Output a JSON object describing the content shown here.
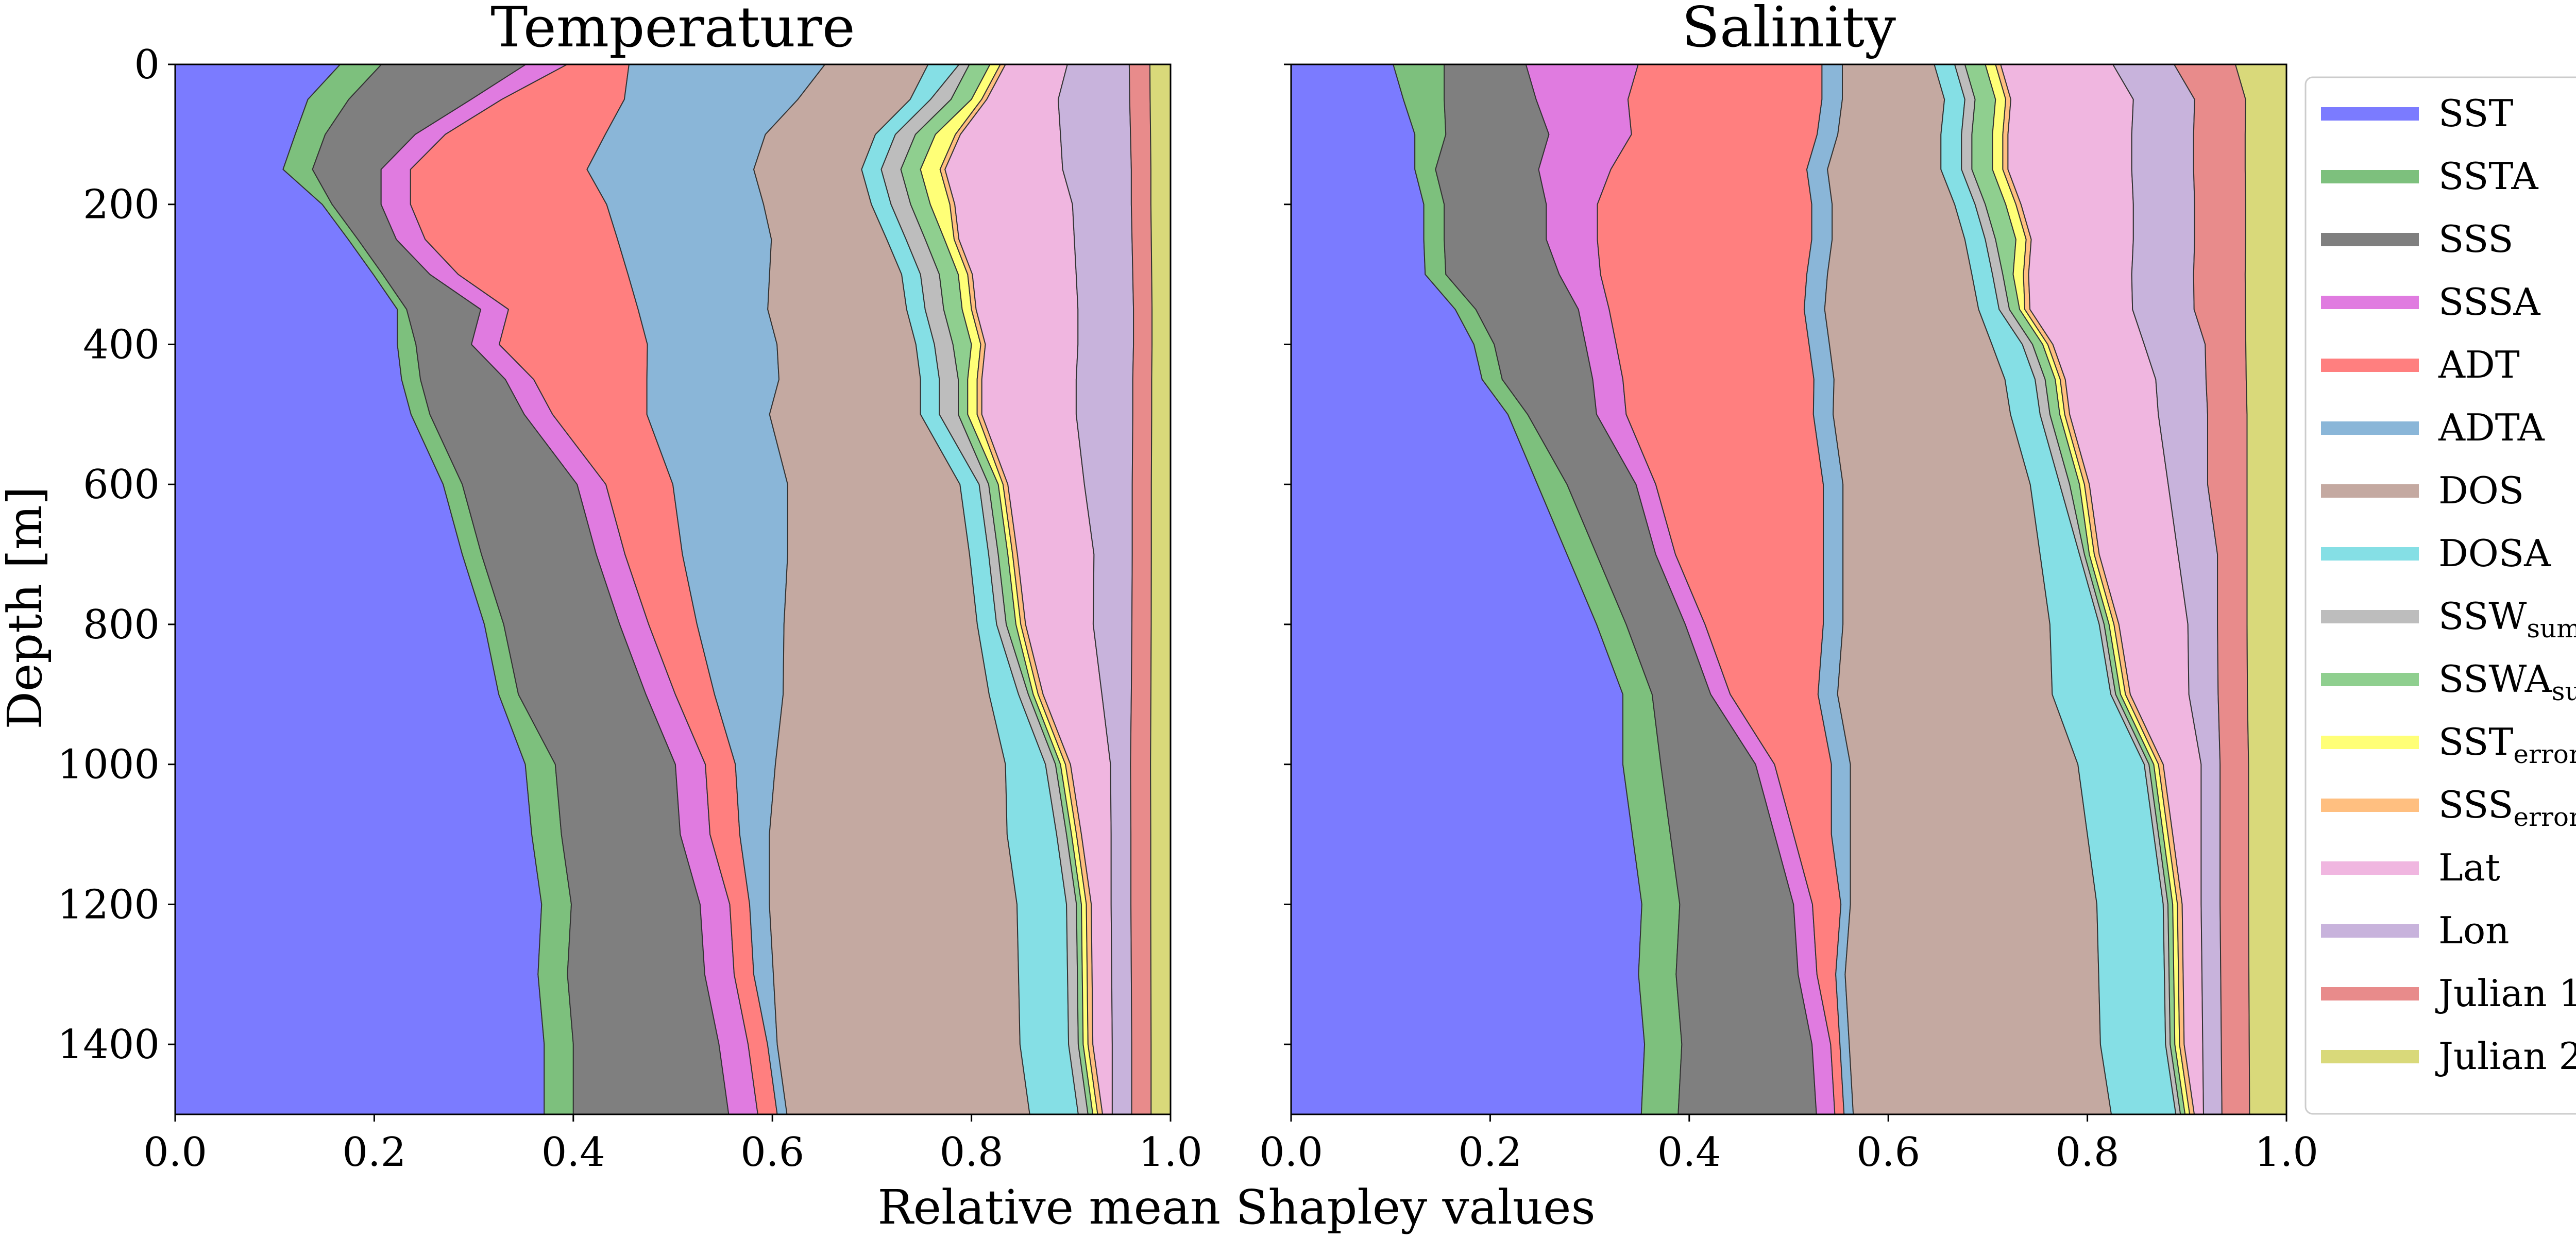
{
  "figure": {
    "xlabel": "Relative mean Shapley values",
    "ylabel": "Depth [m]"
  },
  "legend": [
    {
      "key": "SST",
      "label": "SST",
      "sub": "",
      "color": "#7b7bff"
    },
    {
      "key": "SSTA",
      "label": "SSTA",
      "sub": "",
      "color": "#7dc07d"
    },
    {
      "key": "SSS",
      "label": "SSS",
      "sub": "",
      "color": "#7f7f7f"
    },
    {
      "key": "SSSA",
      "label": "SSSA",
      "sub": "",
      "color": "#e07be0"
    },
    {
      "key": "ADT",
      "label": "ADT",
      "sub": "",
      "color": "#ff7f7f"
    },
    {
      "key": "ADTA",
      "label": "ADTA",
      "sub": "",
      "color": "#8ab6d8"
    },
    {
      "key": "DOS",
      "label": "DOS",
      "sub": "",
      "color": "#c4a9a1"
    },
    {
      "key": "DOSA",
      "label": "DOSA",
      "sub": "",
      "color": "#85dfe5"
    },
    {
      "key": "SSW_sum",
      "label": "SSW",
      "sub": "sum",
      "color": "#bdbdbd"
    },
    {
      "key": "SSWA_sum",
      "label": "SSWA",
      "sub": "sum",
      "color": "#8fcf8f"
    },
    {
      "key": "SST_error",
      "label": "SST",
      "sub": "error",
      "color": "#ffff77"
    },
    {
      "key": "SSS_error",
      "label": "SSS",
      "sub": "error",
      "color": "#ffbf80"
    },
    {
      "key": "Lat",
      "label": "Lat",
      "sub": "",
      "color": "#f0b6e0"
    },
    {
      "key": "Lon",
      "label": "Lon",
      "sub": "",
      "color": "#c8b3dc"
    },
    {
      "key": "Julian1",
      "label": "Julian 1",
      "sub": "",
      "color": "#e88b8b"
    },
    {
      "key": "Julian2",
      "label": "Julian 2",
      "sub": "",
      "color": "#d9d97a"
    }
  ],
  "chart_data": [
    {
      "type": "area",
      "title": "Temperature",
      "xlabel": "Relative mean Shapley values",
      "ylabel": "Depth [m]",
      "xlim": [
        0.0,
        1.0
      ],
      "ylim": [
        1500,
        0
      ],
      "xticks": [
        "0.0",
        "0.2",
        "0.4",
        "0.6",
        "0.8",
        "1.0"
      ],
      "yticks": [
        "0",
        "200",
        "400",
        "600",
        "800",
        "1000",
        "1200",
        "1400"
      ],
      "depth": [
        0,
        50,
        100,
        150,
        200,
        250,
        300,
        350,
        400,
        450,
        500,
        600,
        700,
        800,
        900,
        1000,
        1100,
        1200,
        1300,
        1400,
        1500
      ],
      "series": [
        {
          "name": "SST",
          "values": [
            0.16,
            0.13,
            0.12,
            0.11,
            0.15,
            0.18,
            0.21,
            0.24,
            0.24,
            0.24,
            0.25,
            0.28,
            0.3,
            0.32,
            0.33,
            0.35,
            0.36,
            0.37,
            0.37,
            0.38,
            0.38
          ]
        },
        {
          "name": "SSTA",
          "values": [
            0.04,
            0.04,
            0.03,
            0.03,
            0.01,
            0.01,
            0.01,
            0.01,
            0.02,
            0.02,
            0.02,
            0.02,
            0.02,
            0.02,
            0.02,
            0.03,
            0.03,
            0.03,
            0.03,
            0.03,
            0.03
          ]
        },
        {
          "name": "SSS",
          "values": [
            0.14,
            0.12,
            0.09,
            0.07,
            0.05,
            0.04,
            0.05,
            0.08,
            0.06,
            0.09,
            0.1,
            0.12,
            0.12,
            0.12,
            0.13,
            0.12,
            0.12,
            0.13,
            0.14,
            0.15,
            0.16
          ]
        },
        {
          "name": "SSSA",
          "values": [
            0.04,
            0.03,
            0.03,
            0.03,
            0.03,
            0.03,
            0.03,
            0.03,
            0.03,
            0.03,
            0.03,
            0.03,
            0.03,
            0.03,
            0.03,
            0.03,
            0.03,
            0.03,
            0.03,
            0.03,
            0.03
          ]
        },
        {
          "name": "ADT",
          "values": [
            0.06,
            0.12,
            0.16,
            0.18,
            0.2,
            0.2,
            0.18,
            0.14,
            0.16,
            0.12,
            0.1,
            0.07,
            0.06,
            0.05,
            0.04,
            0.03,
            0.03,
            0.02,
            0.02,
            0.02,
            0.02
          ]
        },
        {
          "name": "ADTA",
          "values": [
            0.19,
            0.17,
            0.16,
            0.17,
            0.16,
            0.16,
            0.15,
            0.14,
            0.14,
            0.14,
            0.13,
            0.12,
            0.11,
            0.09,
            0.07,
            0.04,
            0.03,
            0.02,
            0.02,
            0.01,
            0.01
          ]
        },
        {
          "name": "DOS",
          "values": [
            0.1,
            0.11,
            0.11,
            0.11,
            0.11,
            0.12,
            0.14,
            0.15,
            0.15,
            0.15,
            0.16,
            0.18,
            0.19,
            0.2,
            0.21,
            0.23,
            0.24,
            0.25,
            0.25,
            0.25,
            0.25
          ]
        },
        {
          "name": "DOSA",
          "values": [
            0.03,
            0.02,
            0.02,
            0.02,
            0.02,
            0.02,
            0.02,
            0.02,
            0.02,
            0.02,
            0.02,
            0.02,
            0.02,
            0.02,
            0.03,
            0.04,
            0.05,
            0.05,
            0.05,
            0.05,
            0.05
          ]
        },
        {
          "name": "SSW_sum",
          "values": [
            0.01,
            0.02,
            0.02,
            0.02,
            0.02,
            0.02,
            0.02,
            0.02,
            0.02,
            0.02,
            0.02,
            0.01,
            0.01,
            0.01,
            0.01,
            0.01,
            0.01,
            0.01,
            0.01,
            0.01,
            0.01
          ]
        },
        {
          "name": "SSWA_sum",
          "values": [
            0.02,
            0.02,
            0.02,
            0.02,
            0.02,
            0.02,
            0.02,
            0.02,
            0.02,
            0.01,
            0.01,
            0.01,
            0.01,
            0.01,
            0.005,
            0.005,
            0.005,
            0.005,
            0.005,
            0.005,
            0.005
          ]
        },
        {
          "name": "SST_error",
          "values": [
            0.01,
            0.01,
            0.02,
            0.02,
            0.02,
            0.01,
            0.01,
            0.01,
            0.01,
            0.01,
            0.01,
            0.005,
            0.005,
            0.005,
            0.005,
            0.005,
            0.005,
            0.005,
            0.005,
            0.005,
            0.005
          ]
        },
        {
          "name": "SSS_error",
          "values": [
            0.005,
            0.005,
            0.005,
            0.005,
            0.005,
            0.005,
            0.005,
            0.005,
            0.005,
            0.005,
            0.005,
            0.005,
            0.005,
            0.005,
            0.005,
            0.005,
            0.005,
            0.005,
            0.005,
            0.005,
            0.005
          ]
        },
        {
          "name": "Lat",
          "values": [
            0.06,
            0.07,
            0.1,
            0.12,
            0.12,
            0.12,
            0.11,
            0.11,
            0.1,
            0.1,
            0.1,
            0.08,
            0.08,
            0.07,
            0.06,
            0.04,
            0.03,
            0.02,
            0.02,
            0.02,
            0.01
          ]
        },
        {
          "name": "Lon",
          "values": [
            0.06,
            0.07,
            0.07,
            0.07,
            0.06,
            0.06,
            0.06,
            0.06,
            0.06,
            0.06,
            0.06,
            0.05,
            0.04,
            0.04,
            0.03,
            0.02,
            0.02,
            0.02,
            0.02,
            0.02,
            0.02
          ]
        },
        {
          "name": "Julian1",
          "values": [
            0.02,
            0.02,
            0.02,
            0.02,
            0.02,
            0.02,
            0.02,
            0.02,
            0.02,
            0.02,
            0.02,
            0.02,
            0.02,
            0.02,
            0.02,
            0.02,
            0.02,
            0.02,
            0.02,
            0.02,
            0.02
          ]
        },
        {
          "name": "Julian2",
          "values": [
            0.02,
            0.02,
            0.02,
            0.02,
            0.02,
            0.02,
            0.02,
            0.02,
            0.02,
            0.02,
            0.02,
            0.02,
            0.02,
            0.02,
            0.02,
            0.02,
            0.02,
            0.02,
            0.02,
            0.02,
            0.02
          ]
        }
      ]
    },
    {
      "type": "area",
      "title": "Salinity",
      "xlabel": "Relative mean Shapley values",
      "ylabel": "Depth [m]",
      "xlim": [
        0.0,
        1.0
      ],
      "ylim": [
        1500,
        0
      ],
      "xticks": [
        "0.0",
        "0.2",
        "0.4",
        "0.6",
        "0.8",
        "1.0"
      ],
      "yticks": [
        "0",
        "200",
        "400",
        "600",
        "800",
        "1000",
        "1200",
        "1400"
      ],
      "depth": [
        0,
        50,
        100,
        150,
        200,
        250,
        300,
        350,
        400,
        450,
        500,
        600,
        700,
        800,
        900,
        1000,
        1100,
        1200,
        1300,
        1400,
        1500
      ],
      "series": [
        {
          "name": "SST",
          "values": [
            0.1,
            0.11,
            0.12,
            0.12,
            0.13,
            0.13,
            0.13,
            0.16,
            0.18,
            0.19,
            0.22,
            0.25,
            0.28,
            0.31,
            0.34,
            0.35,
            0.36,
            0.37,
            0.37,
            0.38,
            0.38
          ]
        },
        {
          "name": "SSTA",
          "values": [
            0.05,
            0.04,
            0.03,
            0.02,
            0.02,
            0.02,
            0.02,
            0.02,
            0.02,
            0.02,
            0.02,
            0.03,
            0.03,
            0.03,
            0.03,
            0.04,
            0.04,
            0.04,
            0.04,
            0.04,
            0.04
          ]
        },
        {
          "name": "SSS",
          "values": [
            0.08,
            0.09,
            0.1,
            0.1,
            0.1,
            0.1,
            0.11,
            0.1,
            0.09,
            0.09,
            0.07,
            0.07,
            0.06,
            0.06,
            0.06,
            0.1,
            0.11,
            0.12,
            0.13,
            0.14,
            0.15
          ]
        },
        {
          "name": "SSSA",
          "values": [
            0.11,
            0.09,
            0.08,
            0.07,
            0.05,
            0.05,
            0.04,
            0.03,
            0.03,
            0.03,
            0.03,
            0.02,
            0.02,
            0.02,
            0.02,
            0.02,
            0.02,
            0.02,
            0.02,
            0.02,
            0.02
          ]
        },
        {
          "name": "ADT",
          "values": [
            0.18,
            0.19,
            0.18,
            0.19,
            0.21,
            0.21,
            0.2,
            0.19,
            0.19,
            0.19,
            0.19,
            0.17,
            0.15,
            0.12,
            0.09,
            0.06,
            0.04,
            0.03,
            0.02,
            0.01,
            0.01
          ]
        },
        {
          "name": "ADTA",
          "values": [
            0.02,
            0.02,
            0.02,
            0.02,
            0.02,
            0.02,
            0.02,
            0.02,
            0.02,
            0.02,
            0.02,
            0.02,
            0.02,
            0.02,
            0.02,
            0.02,
            0.02,
            0.01,
            0.01,
            0.01,
            0.01
          ]
        },
        {
          "name": "DOS",
          "values": [
            0.09,
            0.1,
            0.1,
            0.11,
            0.12,
            0.13,
            0.14,
            0.15,
            0.16,
            0.17,
            0.18,
            0.19,
            0.2,
            0.21,
            0.22,
            0.24,
            0.25,
            0.26,
            0.27,
            0.27,
            0.28
          ]
        },
        {
          "name": "DOSA",
          "values": [
            0.02,
            0.02,
            0.02,
            0.02,
            0.02,
            0.02,
            0.02,
            0.02,
            0.03,
            0.03,
            0.03,
            0.03,
            0.04,
            0.05,
            0.06,
            0.07,
            0.07,
            0.07,
            0.07,
            0.07,
            0.07
          ]
        },
        {
          "name": "SSW_sum",
          "values": [
            0.01,
            0.01,
            0.01,
            0.01,
            0.01,
            0.01,
            0.01,
            0.01,
            0.01,
            0.01,
            0.01,
            0.01,
            0.005,
            0.005,
            0.005,
            0.005,
            0.005,
            0.005,
            0.005,
            0.005,
            0.005
          ]
        },
        {
          "name": "SSWA_sum",
          "values": [
            0.02,
            0.02,
            0.02,
            0.02,
            0.02,
            0.02,
            0.01,
            0.01,
            0.01,
            0.01,
            0.01,
            0.01,
            0.005,
            0.005,
            0.005,
            0.005,
            0.005,
            0.005,
            0.005,
            0.005,
            0.005
          ]
        },
        {
          "name": "SST_error",
          "values": [
            0.01,
            0.01,
            0.01,
            0.01,
            0.01,
            0.01,
            0.01,
            0.005,
            0.005,
            0.005,
            0.005,
            0.005,
            0.005,
            0.005,
            0.005,
            0.005,
            0.005,
            0.005,
            0.005,
            0.005,
            0.005
          ]
        },
        {
          "name": "SSS_error",
          "values": [
            0.005,
            0.005,
            0.005,
            0.005,
            0.005,
            0.005,
            0.005,
            0.005,
            0.005,
            0.005,
            0.005,
            0.005,
            0.005,
            0.005,
            0.005,
            0.005,
            0.005,
            0.005,
            0.005,
            0.005,
            0.005
          ]
        },
        {
          "name": "Lat",
          "values": [
            0.11,
            0.12,
            0.12,
            0.12,
            0.11,
            0.1,
            0.1,
            0.1,
            0.09,
            0.09,
            0.09,
            0.08,
            0.08,
            0.07,
            0.06,
            0.04,
            0.03,
            0.02,
            0.02,
            0.02,
            0.01
          ]
        },
        {
          "name": "Lon",
          "values": [
            0.06,
            0.06,
            0.06,
            0.06,
            0.06,
            0.06,
            0.06,
            0.06,
            0.06,
            0.05,
            0.05,
            0.04,
            0.04,
            0.03,
            0.03,
            0.02,
            0.02,
            0.02,
            0.02,
            0.02,
            0.02
          ]
        },
        {
          "name": "Julian1",
          "values": [
            0.06,
            0.05,
            0.05,
            0.05,
            0.05,
            0.05,
            0.05,
            0.05,
            0.04,
            0.04,
            0.04,
            0.04,
            0.03,
            0.03,
            0.03,
            0.03,
            0.03,
            0.03,
            0.03,
            0.03,
            0.03
          ]
        },
        {
          "name": "Julian2",
          "values": [
            0.05,
            0.04,
            0.04,
            0.04,
            0.04,
            0.04,
            0.04,
            0.04,
            0.04,
            0.04,
            0.04,
            0.04,
            0.04,
            0.04,
            0.04,
            0.04,
            0.04,
            0.04,
            0.04,
            0.04,
            0.04
          ]
        }
      ]
    }
  ]
}
